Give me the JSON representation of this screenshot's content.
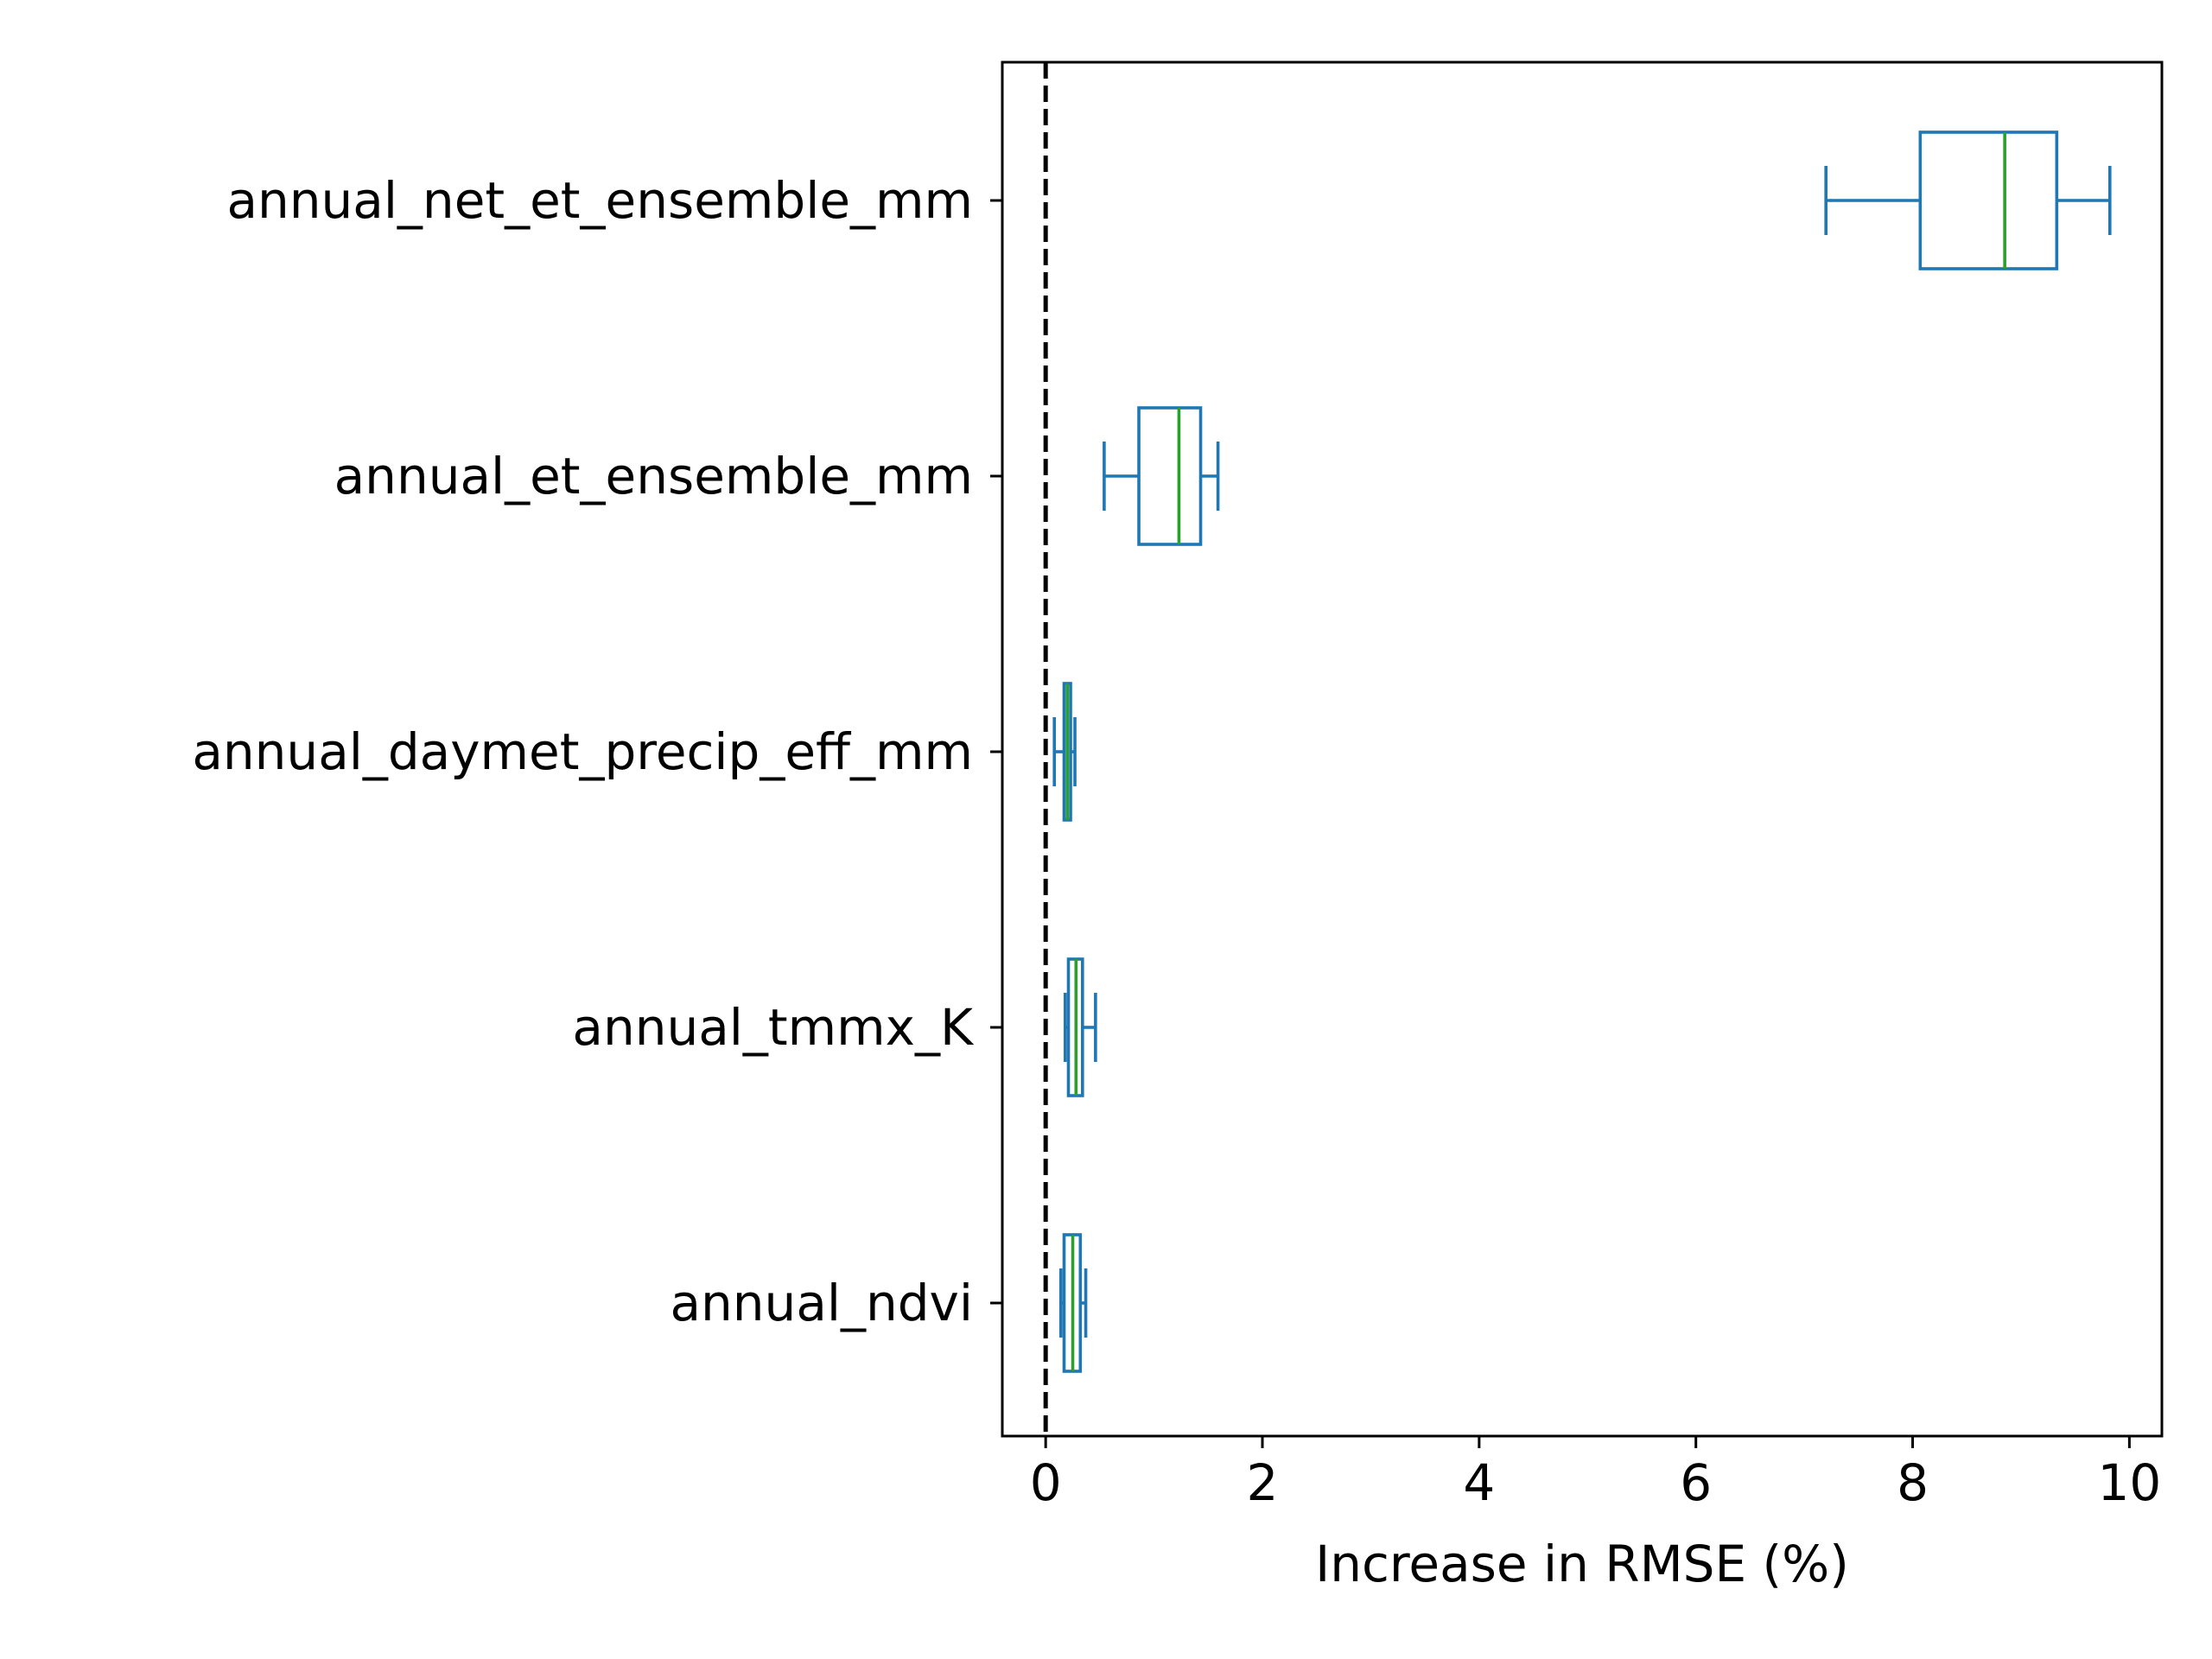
{
  "chart_data": {
    "type": "boxplot",
    "orientation": "horizontal",
    "title": "",
    "xlabel": "Increase in RMSE (%)",
    "ylabel": "",
    "xlim": [
      -0.4,
      10.3
    ],
    "xticks": [
      0,
      2,
      4,
      6,
      8,
      10
    ],
    "xtick_labels": [
      "0",
      "2",
      "4",
      "6",
      "8",
      "10"
    ],
    "grid": false,
    "reference_line": {
      "x": 0,
      "style": "dashed",
      "color": "#000000"
    },
    "colors": {
      "box": "#1f77b4",
      "median": "#2ca02c",
      "axis": "#000000"
    },
    "categories": [
      "annual_net_et_ensemble_mm",
      "annual_et_ensemble_mm",
      "annual_daymet_precip_eff_mm",
      "annual_tmmx_K",
      "annual_ndvi"
    ],
    "boxes": [
      {
        "label": "annual_net_et_ensemble_mm",
        "whisker_low": 7.2,
        "q1": 8.07,
        "median": 8.85,
        "q3": 9.33,
        "whisker_high": 9.82
      },
      {
        "label": "annual_et_ensemble_mm",
        "whisker_low": 0.54,
        "q1": 0.86,
        "median": 1.23,
        "q3": 1.43,
        "whisker_high": 1.59
      },
      {
        "label": "annual_daymet_precip_eff_mm",
        "whisker_low": 0.08,
        "q1": 0.17,
        "median": 0.2,
        "q3": 0.23,
        "whisker_high": 0.27
      },
      {
        "label": "annual_tmmx_K",
        "whisker_low": 0.18,
        "q1": 0.21,
        "median": 0.28,
        "q3": 0.34,
        "whisker_high": 0.46
      },
      {
        "label": "annual_ndvi",
        "whisker_low": 0.14,
        "q1": 0.17,
        "median": 0.25,
        "q3": 0.32,
        "whisker_high": 0.37
      }
    ]
  }
}
